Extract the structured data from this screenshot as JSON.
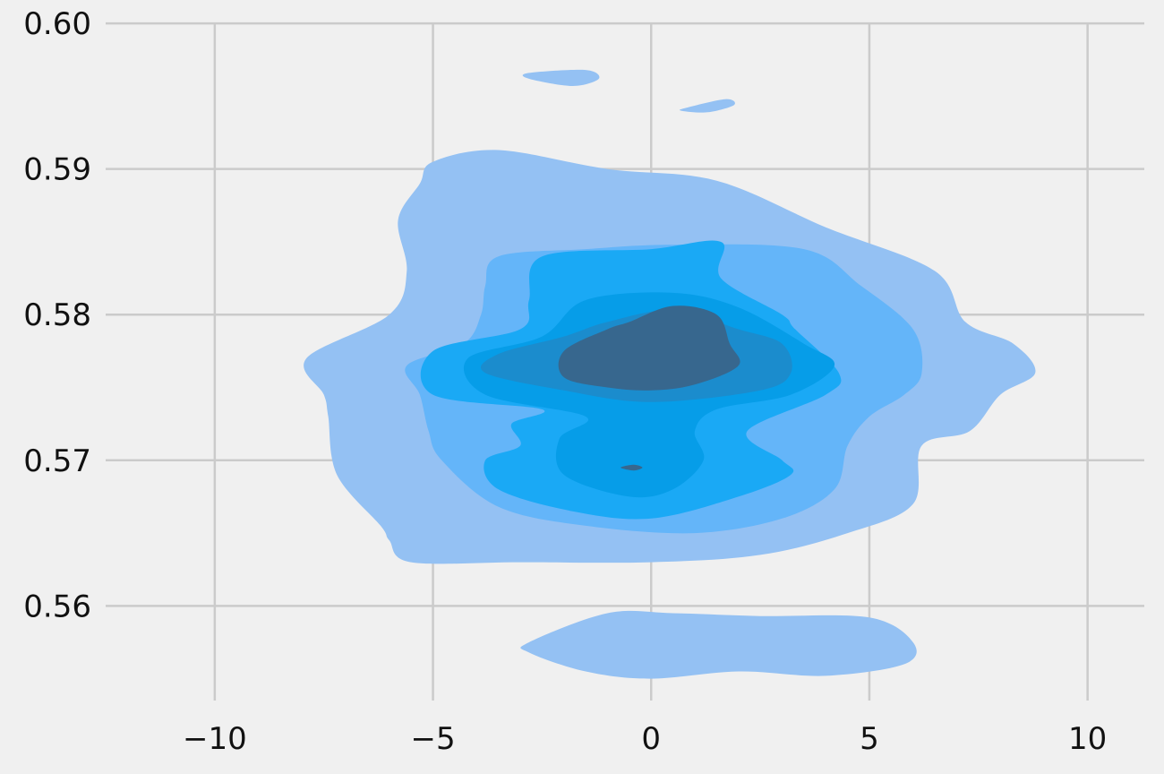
{
  "chart_data": {
    "type": "kde-contour",
    "xlim": [
      -12.5,
      11.3
    ],
    "ylim": [
      0.5535,
      0.6005
    ],
    "x_ticks": [
      -10,
      -5,
      0,
      5,
      10
    ],
    "x_tick_labels": [
      "−10",
      "−5",
      "0",
      "5",
      "10"
    ],
    "y_ticks": [
      0.56,
      0.57,
      0.58,
      0.59,
      0.6
    ],
    "y_tick_labels": [
      "0.56",
      "0.57",
      "0.58",
      "0.59",
      "0.60"
    ],
    "grid": true,
    "levels": [
      {
        "level": 1,
        "color": "#94c1f3",
        "regions": [
          [
            [
              -5.0,
              0.5905
            ],
            [
              -3.5,
              0.5913
            ],
            [
              -1.0,
              0.59
            ],
            [
              1.5,
              0.5892
            ],
            [
              4.0,
              0.586
            ],
            [
              6.5,
              0.583
            ],
            [
              7.2,
              0.5795
            ],
            [
              8.3,
              0.578
            ],
            [
              8.8,
              0.576
            ],
            [
              8.0,
              0.5745
            ],
            [
              7.3,
              0.572
            ],
            [
              6.2,
              0.571
            ],
            [
              6.0,
              0.567
            ],
            [
              4.5,
              0.565
            ],
            [
              2.5,
              0.5635
            ],
            [
              0,
              0.563
            ],
            [
              -3.0,
              0.563
            ],
            [
              -5.5,
              0.563
            ],
            [
              -6.0,
              0.5645
            ],
            [
              -6.2,
              0.5655
            ],
            [
              -7.2,
              0.569
            ],
            [
              -7.4,
              0.573
            ],
            [
              -7.5,
              0.5745
            ],
            [
              -7.9,
              0.577
            ],
            [
              -6.0,
              0.58
            ],
            [
              -5.6,
              0.583
            ],
            [
              -5.8,
              0.5865
            ],
            [
              -5.3,
              0.589
            ]
          ],
          [
            [
              -2.8,
              0.5575
            ],
            [
              -1.0,
              0.5595
            ],
            [
              0.5,
              0.5595
            ],
            [
              2.5,
              0.5593
            ],
            [
              5.0,
              0.5592
            ],
            [
              6.0,
              0.5575
            ],
            [
              5.8,
              0.556
            ],
            [
              4.0,
              0.5552
            ],
            [
              2.0,
              0.5555
            ],
            [
              0,
              0.555
            ],
            [
              -1.5,
              0.5555
            ],
            [
              -2.8,
              0.5568
            ]
          ],
          [
            [
              -2.8,
              0.5966
            ],
            [
              -1.5,
              0.5968
            ],
            [
              -1.2,
              0.5962
            ],
            [
              -1.8,
              0.5957
            ],
            [
              -2.8,
              0.5962
            ]
          ],
          [
            [
              0.8,
              0.5942
            ],
            [
              1.7,
              0.5948
            ],
            [
              1.9,
              0.5944
            ],
            [
              1.3,
              0.5939
            ],
            [
              0.7,
              0.594
            ]
          ]
        ]
      },
      {
        "level": 2,
        "color": "#64b5f9",
        "regions": [
          [
            [
              -3.5,
              0.584
            ],
            [
              -1.5,
              0.5845
            ],
            [
              0.5,
              0.5848
            ],
            [
              3.5,
              0.5845
            ],
            [
              4.8,
              0.582
            ],
            [
              6.0,
              0.579
            ],
            [
              6.2,
              0.576
            ],
            [
              5.8,
              0.5745
            ],
            [
              5.0,
              0.573
            ],
            [
              4.5,
              0.571
            ],
            [
              4.2,
              0.568
            ],
            [
              3.0,
              0.566
            ],
            [
              1.0,
              0.565
            ],
            [
              -1.5,
              0.5655
            ],
            [
              -3.5,
              0.5668
            ],
            [
              -4.8,
              0.57
            ],
            [
              -5.1,
              0.572
            ],
            [
              -5.3,
              0.5745
            ],
            [
              -5.6,
              0.5765
            ],
            [
              -4.3,
              0.578
            ],
            [
              -3.9,
              0.58
            ],
            [
              -3.8,
              0.582
            ]
          ]
        ]
      },
      {
        "level": 3,
        "color": "#1aa9f5",
        "regions": [
          [
            [
              -2.5,
              0.584
            ],
            [
              0,
              0.5845
            ],
            [
              1.6,
              0.585
            ],
            [
              1.6,
              0.5825
            ],
            [
              3.0,
              0.58
            ],
            [
              3.3,
              0.579
            ],
            [
              4.3,
              0.576
            ],
            [
              4.0,
              0.5745
            ],
            [
              2.2,
              0.572
            ],
            [
              3.0,
              0.57
            ],
            [
              3.2,
              0.569
            ],
            [
              2.0,
              0.5675
            ],
            [
              0,
              0.566
            ],
            [
              -1.8,
              0.5665
            ],
            [
              -3.5,
              0.568
            ],
            [
              -3.8,
              0.57
            ],
            [
              -3.0,
              0.571
            ],
            [
              -3.2,
              0.5725
            ],
            [
              -2.5,
              0.5735
            ],
            [
              -5.0,
              0.5745
            ],
            [
              -5.0,
              0.5775
            ],
            [
              -3.0,
              0.579
            ],
            [
              -2.8,
              0.581
            ]
          ]
        ]
      },
      {
        "level": 4,
        "color": "#069de8",
        "regions": [
          [
            [
              -1.5,
              0.581
            ],
            [
              0.5,
              0.5815
            ],
            [
              2.0,
              0.5805
            ],
            [
              3.5,
              0.578
            ],
            [
              4.2,
              0.5765
            ],
            [
              3.2,
              0.5745
            ],
            [
              1.5,
              0.5735
            ],
            [
              1.0,
              0.572
            ],
            [
              1.2,
              0.57
            ],
            [
              0.5,
              0.568
            ],
            [
              -0.5,
              0.5675
            ],
            [
              -2.0,
              0.569
            ],
            [
              -2.1,
              0.5715
            ],
            [
              -1.5,
              0.573
            ],
            [
              -3.8,
              0.5745
            ],
            [
              -4.2,
              0.577
            ],
            [
              -2.5,
              0.5785
            ]
          ]
        ]
      },
      {
        "level": 5,
        "color": "#1b8ccd",
        "regions": [
          [
            [
              -1.0,
              0.5795
            ],
            [
              0.5,
              0.5803
            ],
            [
              2.0,
              0.579
            ],
            [
              3.0,
              0.578
            ],
            [
              3.2,
              0.576
            ],
            [
              2.5,
              0.5748
            ],
            [
              0,
              0.574
            ],
            [
              -2.0,
              0.5748
            ],
            [
              -3.8,
              0.576
            ],
            [
              -3.5,
              0.5773
            ],
            [
              -2.0,
              0.5785
            ]
          ]
        ]
      },
      {
        "level": 6,
        "color": "#37678e",
        "regions": [
          [
            [
              -0.5,
              0.5795
            ],
            [
              0.5,
              0.5806
            ],
            [
              1.5,
              0.58
            ],
            [
              1.8,
              0.578
            ],
            [
              2.0,
              0.5765
            ],
            [
              1.0,
              0.5752
            ],
            [
              0,
              0.5748
            ],
            [
              -1.0,
              0.575
            ],
            [
              -2.0,
              0.5757
            ],
            [
              -2.0,
              0.5775
            ],
            [
              -1.0,
              0.579
            ]
          ],
          [
            [
              -0.7,
              0.5695
            ],
            [
              -0.4,
              0.5697
            ],
            [
              -0.2,
              0.5695
            ],
            [
              -0.4,
              0.5693
            ]
          ]
        ]
      }
    ]
  }
}
